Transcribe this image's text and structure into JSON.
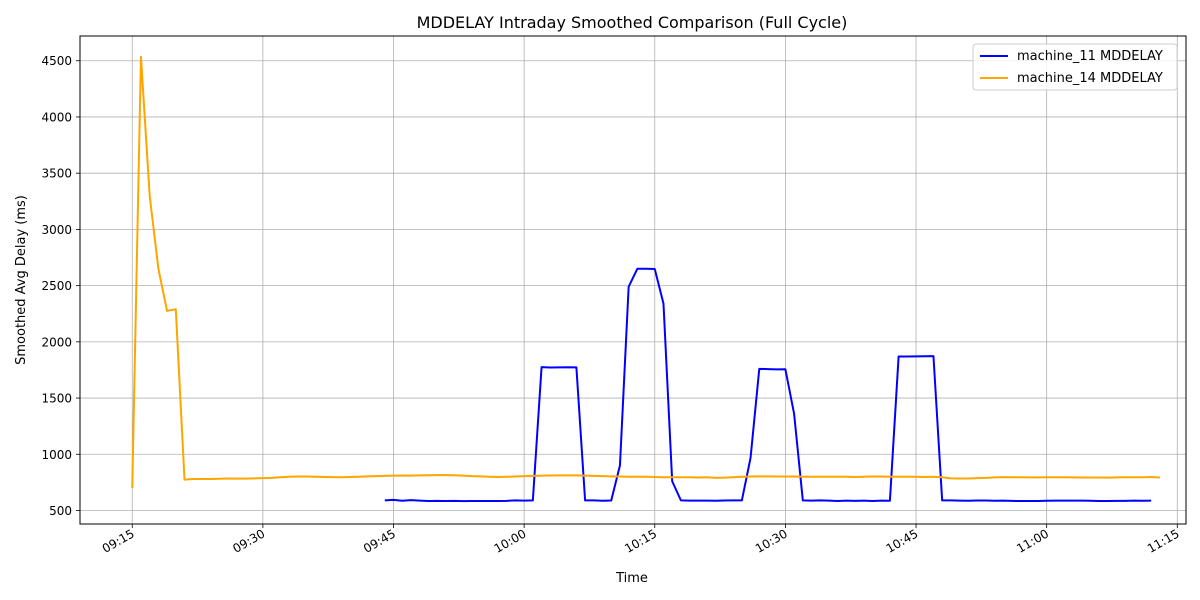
{
  "chart_data": {
    "type": "line",
    "title": "MDDELAY Intraday Smoothed Comparison (Full Cycle)",
    "xlabel": "Time",
    "ylabel": "Smoothed Avg Delay (ms)",
    "x_axis_kind": "time",
    "xlim": [
      "09:09",
      "11:16"
    ],
    "ylim": [
      380,
      4720
    ],
    "x_ticks": [
      "09:15",
      "09:30",
      "09:45",
      "10:00",
      "10:15",
      "10:30",
      "10:45",
      "11:00",
      "11:15"
    ],
    "y_ticks": [
      500,
      1000,
      1500,
      2000,
      2500,
      3000,
      3500,
      4000,
      4500
    ],
    "grid": true,
    "legend_position": "upper right",
    "series": [
      {
        "name": "machine_11 MDDELAY",
        "color": "#0000ff",
        "points": [
          [
            "09:44",
            590
          ],
          [
            "09:45",
            595
          ],
          [
            "09:46",
            587
          ],
          [
            "09:47",
            592
          ],
          [
            "09:48",
            588
          ],
          [
            "09:49",
            585
          ],
          [
            "09:50",
            586
          ],
          [
            "09:51",
            584
          ],
          [
            "09:52",
            586
          ],
          [
            "09:53",
            583
          ],
          [
            "09:54",
            584
          ],
          [
            "09:55",
            585
          ],
          [
            "09:56",
            584
          ],
          [
            "09:57",
            585
          ],
          [
            "09:58",
            586
          ],
          [
            "09:59",
            590
          ],
          [
            "10:00",
            588
          ],
          [
            "10:01",
            590
          ],
          [
            "10:02",
            1775
          ],
          [
            "10:03",
            1772
          ],
          [
            "10:04",
            1773
          ],
          [
            "10:05",
            1774
          ],
          [
            "10:06",
            1773
          ],
          [
            "10:07",
            590
          ],
          [
            "10:08",
            590
          ],
          [
            "10:09",
            587
          ],
          [
            "10:10",
            589
          ],
          [
            "10:11",
            900
          ],
          [
            "10:12",
            2490
          ],
          [
            "10:13",
            2650
          ],
          [
            "10:14",
            2650
          ],
          [
            "10:15",
            2648
          ],
          [
            "10:16",
            2340
          ],
          [
            "10:17",
            760
          ],
          [
            "10:18",
            590
          ],
          [
            "10:19",
            588
          ],
          [
            "10:20",
            588
          ],
          [
            "10:21",
            588
          ],
          [
            "10:22",
            587
          ],
          [
            "10:23",
            589
          ],
          [
            "10:24",
            590
          ],
          [
            "10:25",
            590
          ],
          [
            "10:26",
            970
          ],
          [
            "10:27",
            1760
          ],
          [
            "10:28",
            1757
          ],
          [
            "10:29",
            1755
          ],
          [
            "10:30",
            1756
          ],
          [
            "10:31",
            1360
          ],
          [
            "10:32",
            590
          ],
          [
            "10:33",
            588
          ],
          [
            "10:34",
            590
          ],
          [
            "10:35",
            588
          ],
          [
            "10:36",
            585
          ],
          [
            "10:37",
            588
          ],
          [
            "10:38",
            586
          ],
          [
            "10:39",
            588
          ],
          [
            "10:40",
            585
          ],
          [
            "10:41",
            588
          ],
          [
            "10:42",
            587
          ],
          [
            "10:43",
            1870
          ],
          [
            "10:44",
            1870
          ],
          [
            "10:45",
            1871
          ],
          [
            "10:46",
            1872
          ],
          [
            "10:47",
            1873
          ],
          [
            "10:48",
            590
          ],
          [
            "10:49",
            590
          ],
          [
            "10:50",
            588
          ],
          [
            "10:51",
            587
          ],
          [
            "10:52",
            589
          ],
          [
            "10:53",
            589
          ],
          [
            "10:54",
            587
          ],
          [
            "10:55",
            588
          ],
          [
            "10:56",
            586
          ],
          [
            "10:57",
            584
          ],
          [
            "10:58",
            584
          ],
          [
            "10:59",
            585
          ],
          [
            "11:00",
            587
          ],
          [
            "11:01",
            588
          ],
          [
            "11:02",
            588
          ],
          [
            "11:03",
            588
          ],
          [
            "11:04",
            588
          ],
          [
            "11:05",
            587
          ],
          [
            "11:06",
            585
          ],
          [
            "11:07",
            585
          ],
          [
            "11:08",
            586
          ],
          [
            "11:09",
            586
          ],
          [
            "11:10",
            588
          ],
          [
            "11:11",
            587
          ],
          [
            "11:12",
            588
          ]
        ]
      },
      {
        "name": "machine_14 MDDELAY",
        "color": "#ffa500",
        "points": [
          [
            "09:15",
            700
          ],
          [
            "09:16",
            4535
          ],
          [
            "09:17",
            3300
          ],
          [
            "09:18",
            2650
          ],
          [
            "09:19",
            2275
          ],
          [
            "09:20",
            2290
          ],
          [
            "09:21",
            775
          ],
          [
            "09:22",
            780
          ],
          [
            "09:23",
            780
          ],
          [
            "09:24",
            780
          ],
          [
            "09:25",
            782
          ],
          [
            "09:26",
            785
          ],
          [
            "09:27",
            784
          ],
          [
            "09:28",
            784
          ],
          [
            "09:29",
            786
          ],
          [
            "09:30",
            788
          ],
          [
            "09:31",
            790
          ],
          [
            "09:32",
            796
          ],
          [
            "09:33",
            800
          ],
          [
            "09:34",
            802
          ],
          [
            "09:35",
            802
          ],
          [
            "09:36",
            800
          ],
          [
            "09:37",
            798
          ],
          [
            "09:38",
            797
          ],
          [
            "09:39",
            796
          ],
          [
            "09:40",
            798
          ],
          [
            "09:41",
            800
          ],
          [
            "09:42",
            804
          ],
          [
            "09:43",
            806
          ],
          [
            "09:44",
            808
          ],
          [
            "09:45",
            810
          ],
          [
            "09:46",
            811
          ],
          [
            "09:47",
            810
          ],
          [
            "09:48",
            812
          ],
          [
            "09:49",
            814
          ],
          [
            "09:50",
            815
          ],
          [
            "09:51",
            815
          ],
          [
            "09:52",
            813
          ],
          [
            "09:53",
            810
          ],
          [
            "09:54",
            806
          ],
          [
            "09:55",
            804
          ],
          [
            "09:56",
            800
          ],
          [
            "09:57",
            798
          ],
          [
            "09:58",
            800
          ],
          [
            "09:59",
            803
          ],
          [
            "10:00",
            806
          ],
          [
            "10:01",
            808
          ],
          [
            "10:02",
            810
          ],
          [
            "10:03",
            811
          ],
          [
            "10:04",
            812
          ],
          [
            "10:05",
            812
          ],
          [
            "10:06",
            812
          ],
          [
            "10:07",
            810
          ],
          [
            "10:08",
            808
          ],
          [
            "10:09",
            806
          ],
          [
            "10:10",
            804
          ],
          [
            "10:11",
            802
          ],
          [
            "10:12",
            800
          ],
          [
            "10:13",
            800
          ],
          [
            "10:14",
            800
          ],
          [
            "10:15",
            798
          ],
          [
            "10:16",
            796
          ],
          [
            "10:17",
            796
          ],
          [
            "10:18",
            796
          ],
          [
            "10:19",
            796
          ],
          [
            "10:20",
            794
          ],
          [
            "10:21",
            796
          ],
          [
            "10:22",
            790
          ],
          [
            "10:23",
            792
          ],
          [
            "10:24",
            796
          ],
          [
            "10:25",
            800
          ],
          [
            "10:26",
            802
          ],
          [
            "10:27",
            804
          ],
          [
            "10:28",
            804
          ],
          [
            "10:29",
            802
          ],
          [
            "10:30",
            802
          ],
          [
            "10:31",
            802
          ],
          [
            "10:32",
            800
          ],
          [
            "10:33",
            800
          ],
          [
            "10:34",
            800
          ],
          [
            "10:35",
            800
          ],
          [
            "10:36",
            800
          ],
          [
            "10:37",
            800
          ],
          [
            "10:38",
            798
          ],
          [
            "10:39",
            800
          ],
          [
            "10:40",
            802
          ],
          [
            "10:41",
            802
          ],
          [
            "10:42",
            800
          ],
          [
            "10:43",
            800
          ],
          [
            "10:44",
            800
          ],
          [
            "10:45",
            800
          ],
          [
            "10:46",
            798
          ],
          [
            "10:47",
            800
          ],
          [
            "10:48",
            796
          ],
          [
            "10:49",
            786
          ],
          [
            "10:50",
            785
          ],
          [
            "10:51",
            785
          ],
          [
            "10:52",
            788
          ],
          [
            "10:53",
            790
          ],
          [
            "10:54",
            795
          ],
          [
            "10:55",
            797
          ],
          [
            "10:56",
            796
          ],
          [
            "10:57",
            796
          ],
          [
            "10:58",
            795
          ],
          [
            "10:59",
            795
          ],
          [
            "11:00",
            796
          ],
          [
            "11:01",
            796
          ],
          [
            "11:02",
            796
          ],
          [
            "11:03",
            795
          ],
          [
            "11:04",
            794
          ],
          [
            "11:05",
            793
          ],
          [
            "11:06",
            793
          ],
          [
            "11:07",
            792
          ],
          [
            "11:08",
            795
          ],
          [
            "11:09",
            796
          ],
          [
            "11:10",
            796
          ],
          [
            "11:11",
            796
          ],
          [
            "11:12",
            798
          ],
          [
            "11:13",
            793
          ]
        ]
      }
    ]
  }
}
